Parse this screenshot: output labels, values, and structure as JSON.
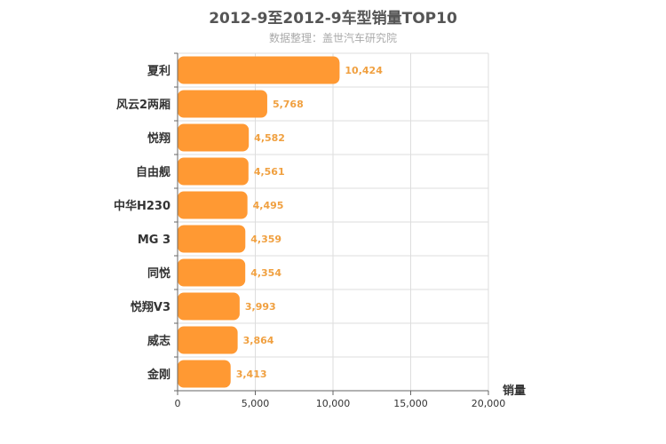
{
  "chart_data": {
    "type": "bar",
    "orientation": "horizontal",
    "title": "2012-9至2012-9车型销量TOP10",
    "subtitle": "数据整理：盖世汽车研究院",
    "categories": [
      "夏利",
      "风云2两厢",
      "悦翔",
      "自由舰",
      "中华H230",
      "MG 3",
      "同悦",
      "悦翔V3",
      "威志",
      "金刚"
    ],
    "values": [
      10424,
      5768,
      4582,
      4561,
      4495,
      4359,
      4354,
      3993,
      3864,
      3413
    ],
    "value_labels": [
      "10,424",
      "5,768",
      "4,582",
      "4,561",
      "4,495",
      "4,359",
      "4,354",
      "3,993",
      "3,864",
      "3,413"
    ],
    "xlabel": "销量",
    "ylabel": "",
    "xlim": [
      0,
      20000
    ],
    "ticks": [
      0,
      5000,
      10000,
      15000,
      20000
    ],
    "tick_labels": [
      "0",
      "5,000",
      "10,000",
      "15,000",
      "20,000"
    ],
    "grid": true,
    "bar_color": "#ff9933",
    "label_color": "#f0a040"
  }
}
